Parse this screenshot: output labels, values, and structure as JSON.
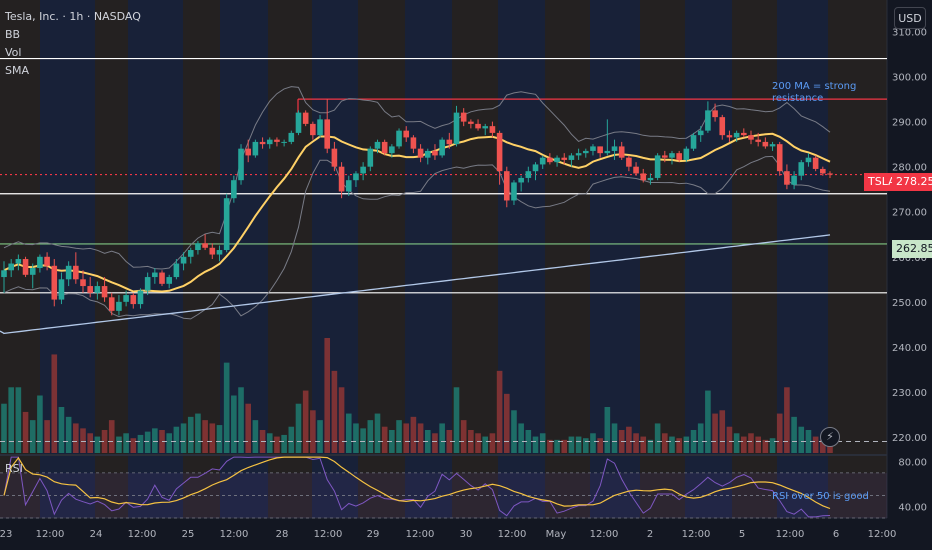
{
  "legend": {
    "title": "Tesla, Inc. · 1h · NASDAQ",
    "indicators": [
      "BB",
      "Vol",
      "SMA"
    ]
  },
  "currency_button": "USD",
  "ticker_badge": "TSLA",
  "price_badge": "278.25",
  "level_badge": "262.85",
  "annotation_ma": "200 MA = strong resistance",
  "annotation_rsi": "RSI over 50 is good",
  "rsi_label": "RSI",
  "lightning_icon": "lightning-icon",
  "colors": {
    "background": "#131722",
    "up": "#26a69a",
    "down": "#ef5350",
    "sma_fast": "#ffd166",
    "sma_200": "#b2c8e8",
    "bollinger": "#787b86",
    "resistance": "#f23645",
    "support_green": "#81c784",
    "white_lines": "#ffffff",
    "rsi_line": "#7e57c2",
    "rsi_ma": "#f5c242",
    "session_blue": "#1e2a4a",
    "session_orange": "#3a2e22"
  },
  "chart_data": [
    {
      "type": "candlestick",
      "title": "Tesla, Inc. · 1h · NASDAQ",
      "x_labels": [
        "23",
        "12:00",
        "24",
        "12:00",
        "25",
        "12:00",
        "28",
        "12:00",
        "29",
        "12:00",
        "30",
        "12:00",
        "May",
        "12:00",
        "2",
        "12:00",
        "5",
        "12:00",
        "6",
        "12:00"
      ],
      "y_ticks": [
        310,
        300,
        290,
        280,
        270,
        260,
        250,
        240,
        230,
        220
      ],
      "y_tick_labels": [
        "310.00",
        "300.00",
        "290.00",
        "280.00",
        "270.00",
        "260.00",
        "250.00",
        "240.00",
        "230.00",
        "220.00"
      ],
      "ylim": [
        216,
        317
      ],
      "horizontal_levels": [
        {
          "price": 304,
          "color": "#ffffff"
        },
        {
          "price": 295,
          "color": "#f23645"
        },
        {
          "price": 278.25,
          "color": "#f23645",
          "style": "dotted"
        },
        {
          "price": 274,
          "color": "#ffffff"
        },
        {
          "price": 262.85,
          "color": "#81c784"
        },
        {
          "price": 252,
          "color": "#ffffff"
        },
        {
          "price": 219,
          "color": "#d1d4dc",
          "style": "dashed"
        }
      ],
      "last_price": 278.25,
      "candles": [
        [
          255.5,
          259.0,
          252.0,
          257.0
        ],
        [
          257.0,
          259.5,
          255.5,
          258.5
        ],
        [
          258.5,
          260.5,
          257.0,
          259.5
        ],
        [
          259.5,
          260.0,
          255.5,
          256.0
        ],
        [
          256.0,
          258.5,
          253.0,
          257.5
        ],
        [
          257.5,
          260.5,
          256.5,
          260.0
        ],
        [
          260.0,
          261.0,
          257.0,
          258.0
        ],
        [
          258.0,
          259.5,
          249.0,
          250.5
        ],
        [
          250.5,
          256.5,
          249.5,
          255.0
        ],
        [
          255.0,
          259.0,
          253.5,
          258.0
        ],
        [
          258.0,
          261.0,
          254.0,
          255.0
        ],
        [
          255.0,
          257.0,
          252.0,
          253.5
        ],
        [
          253.5,
          255.5,
          251.0,
          252.0
        ],
        [
          252.0,
          254.5,
          250.5,
          253.5
        ],
        [
          253.5,
          255.5,
          250.0,
          251.0
        ],
        [
          251.0,
          252.0,
          247.0,
          248.0
        ],
        [
          248.0,
          251.5,
          247.0,
          250.0
        ],
        [
          250.0,
          252.5,
          249.0,
          251.5
        ],
        [
          251.5,
          252.0,
          248.5,
          249.5
        ],
        [
          249.5,
          253.0,
          248.5,
          252.5
        ],
        [
          252.5,
          256.5,
          251.5,
          255.5
        ],
        [
          255.5,
          257.5,
          254.0,
          256.5
        ],
        [
          256.5,
          257.0,
          253.5,
          254.0
        ],
        [
          254.0,
          256.0,
          253.0,
          255.5
        ],
        [
          255.5,
          259.5,
          255.0,
          258.5
        ],
        [
          258.5,
          261.0,
          257.0,
          260.0
        ],
        [
          260.0,
          262.0,
          258.5,
          261.5
        ],
        [
          261.5,
          263.5,
          260.5,
          263.0
        ],
        [
          263.0,
          265.0,
          261.5,
          262.0
        ],
        [
          262.0,
          263.0,
          259.5,
          260.5
        ],
        [
          260.5,
          262.5,
          259.0,
          261.5
        ],
        [
          261.5,
          274.0,
          261.0,
          273.0
        ],
        [
          273.0,
          278.0,
          272.0,
          277.0
        ],
        [
          277.0,
          285.0,
          276.0,
          284.0
        ],
        [
          284.0,
          286.0,
          281.0,
          282.5
        ],
        [
          282.5,
          286.0,
          282.0,
          285.5
        ],
        [
          285.5,
          286.5,
          284.0,
          285.0
        ],
        [
          285.0,
          286.5,
          284.0,
          286.0
        ],
        [
          286.0,
          286.5,
          284.5,
          285.5
        ],
        [
          285.5,
          286.0,
          284.5,
          285.5
        ],
        [
          285.5,
          288.0,
          285.0,
          287.5
        ],
        [
          287.5,
          292.5,
          287.0,
          292.0
        ],
        [
          292.0,
          292.5,
          289.0,
          289.5
        ],
        [
          289.5,
          290.0,
          286.0,
          287.0
        ],
        [
          287.0,
          291.5,
          286.5,
          290.5
        ],
        [
          290.5,
          295.0,
          283.0,
          284.0
        ],
        [
          284.0,
          285.5,
          279.0,
          280.0
        ],
        [
          280.0,
          281.0,
          273.0,
          274.5
        ],
        [
          274.5,
          278.0,
          273.5,
          277.0
        ],
        [
          277.0,
          279.0,
          275.5,
          278.5
        ],
        [
          278.5,
          281.0,
          277.0,
          280.0
        ],
        [
          280.0,
          284.5,
          279.0,
          284.0
        ],
        [
          284.0,
          286.0,
          283.0,
          285.5
        ],
        [
          285.5,
          286.0,
          282.5,
          283.0
        ],
        [
          283.0,
          285.0,
          282.0,
          284.5
        ],
        [
          284.5,
          288.5,
          284.0,
          288.0
        ],
        [
          288.0,
          289.0,
          285.5,
          286.5
        ],
        [
          286.5,
          287.0,
          283.0,
          284.0
        ],
        [
          284.0,
          285.0,
          281.0,
          282.0
        ],
        [
          282.0,
          284.0,
          280.5,
          283.5
        ],
        [
          283.5,
          285.0,
          281.5,
          282.5
        ],
        [
          282.5,
          286.5,
          282.0,
          286.0
        ],
        [
          286.0,
          287.5,
          284.0,
          285.0
        ],
        [
          285.0,
          293.5,
          284.5,
          292.0
        ],
        [
          292.0,
          293.0,
          289.0,
          290.0
        ],
        [
          290.0,
          290.5,
          288.5,
          289.5
        ],
        [
          289.5,
          290.5,
          288.0,
          288.5
        ],
        [
          288.5,
          289.5,
          287.0,
          289.0
        ],
        [
          289.0,
          290.0,
          286.5,
          287.5
        ],
        [
          287.5,
          288.0,
          276.0,
          279.0
        ],
        [
          279.0,
          280.0,
          271.0,
          272.5
        ],
        [
          272.5,
          277.0,
          271.5,
          276.5
        ],
        [
          276.5,
          278.0,
          274.5,
          277.5
        ],
        [
          277.5,
          280.0,
          276.5,
          279.0
        ],
        [
          279.0,
          281.0,
          277.0,
          280.5
        ],
        [
          280.5,
          282.5,
          279.5,
          282.0
        ],
        [
          282.0,
          283.0,
          280.5,
          281.0
        ],
        [
          281.0,
          282.5,
          280.0,
          282.0
        ],
        [
          282.0,
          283.0,
          280.5,
          281.5
        ],
        [
          281.5,
          283.0,
          280.0,
          282.5
        ],
        [
          282.5,
          284.0,
          281.5,
          283.0
        ],
        [
          283.0,
          284.0,
          282.0,
          283.5
        ],
        [
          283.5,
          285.0,
          282.5,
          284.5
        ],
        [
          284.5,
          284.5,
          282.0,
          283.0
        ],
        [
          283.0,
          290.5,
          282.5,
          283.5
        ],
        [
          283.5,
          286.0,
          281.5,
          284.5
        ],
        [
          284.5,
          285.5,
          281.5,
          282.0
        ],
        [
          282.0,
          282.5,
          279.0,
          280.0
        ],
        [
          280.0,
          281.0,
          278.0,
          278.5
        ],
        [
          278.5,
          279.5,
          276.5,
          277.0
        ],
        [
          277.0,
          278.5,
          276.0,
          277.5
        ],
        [
          277.5,
          283.0,
          277.0,
          282.5
        ],
        [
          282.5,
          283.5,
          281.0,
          282.0
        ],
        [
          282.0,
          283.5,
          280.5,
          283.0
        ],
        [
          283.0,
          283.5,
          281.0,
          281.5
        ],
        [
          281.5,
          284.5,
          281.0,
          284.0
        ],
        [
          284.0,
          287.5,
          283.5,
          287.0
        ],
        [
          287.0,
          289.0,
          285.5,
          288.0
        ],
        [
          288.0,
          294.5,
          287.5,
          292.5
        ],
        [
          292.5,
          294.0,
          290.0,
          291.0
        ],
        [
          291.0,
          291.5,
          286.0,
          287.0
        ],
        [
          287.0,
          288.0,
          285.5,
          286.5
        ],
        [
          286.5,
          288.0,
          285.5,
          287.5
        ],
        [
          287.5,
          288.5,
          286.5,
          287.0
        ],
        [
          287.0,
          288.0,
          285.0,
          286.0
        ],
        [
          286.0,
          287.5,
          284.5,
          285.5
        ],
        [
          285.5,
          286.5,
          284.0,
          284.5
        ],
        [
          284.5,
          285.5,
          283.5,
          285.0
        ],
        [
          285.0,
          285.5,
          278.0,
          279.0
        ],
        [
          279.0,
          280.5,
          275.0,
          276.0
        ],
        [
          276.0,
          279.0,
          275.0,
          278.0
        ],
        [
          278.0,
          281.5,
          277.0,
          281.0
        ],
        [
          281.0,
          283.0,
          280.0,
          282.0
        ],
        [
          282.0,
          282.5,
          279.0,
          279.5
        ],
        [
          279.5,
          280.0,
          278.0,
          278.5
        ],
        [
          278.5,
          279.0,
          277.5,
          278.25
        ]
      ],
      "volumes": [
        30,
        40,
        40,
        25,
        20,
        35,
        20,
        60,
        28,
        22,
        18,
        15,
        12,
        10,
        14,
        20,
        10,
        12,
        9,
        11,
        13,
        15,
        14,
        12,
        16,
        18,
        22,
        24,
        20,
        18,
        17,
        55,
        35,
        40,
        30,
        20,
        14,
        12,
        10,
        11,
        16,
        30,
        38,
        26,
        20,
        70,
        50,
        40,
        24,
        18,
        15,
        20,
        24,
        16,
        14,
        20,
        18,
        22,
        18,
        14,
        12,
        18,
        14,
        40,
        20,
        14,
        12,
        10,
        12,
        50,
        36,
        26,
        18,
        14,
        10,
        12,
        8,
        8,
        8,
        10,
        10,
        9,
        12,
        9,
        28,
        18,
        14,
        16,
        12,
        10,
        8,
        18,
        12,
        10,
        9,
        10,
        14,
        18,
        38,
        24,
        26,
        16,
        12,
        10,
        12,
        10,
        8,
        9,
        24,
        40,
        22,
        16,
        14,
        10,
        8,
        6
      ]
    },
    {
      "type": "line",
      "title": "RSI",
      "y_ticks": [
        80,
        40
      ],
      "y_tick_labels": [
        "80.00",
        "40.00"
      ],
      "ylim": [
        30,
        85
      ]
    }
  ]
}
